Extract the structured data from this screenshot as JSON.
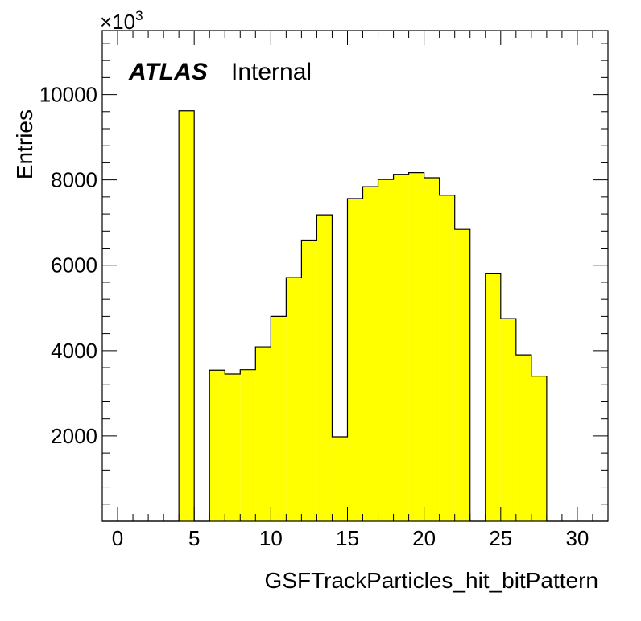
{
  "chart_data": {
    "type": "bar",
    "xlabel": "GSFTrackParticles_hit_bitPattern",
    "ylabel": "Entries",
    "y_multiplier": "×10",
    "y_multiplier_exp": "3",
    "label_atlas": "ATLAS",
    "label_status": "Internal",
    "fill_color": "#ffff00",
    "line_color": "#000000",
    "xlim": [
      -1,
      32
    ],
    "ylim": [
      0,
      11500
    ],
    "x_ticks": [
      0,
      5,
      10,
      15,
      20,
      25,
      30
    ],
    "x_tick_labels": [
      "0",
      "5",
      "10",
      "15",
      "20",
      "25",
      "30"
    ],
    "y_ticks": [
      2000,
      4000,
      6000,
      8000,
      10000
    ],
    "y_tick_labels": [
      "2000",
      "4000",
      "6000",
      "8000",
      "10000"
    ],
    "bin_width": 1,
    "bins_lower_edge": [
      -1,
      0,
      1,
      2,
      3,
      4,
      5,
      6,
      7,
      8,
      9,
      10,
      11,
      12,
      13,
      14,
      15,
      16,
      17,
      18,
      19,
      20,
      21,
      22,
      23,
      24,
      25,
      26,
      27,
      28,
      29,
      30,
      31
    ],
    "values": [
      0,
      0,
      0,
      0,
      0,
      9620,
      0,
      3540,
      3450,
      3550,
      4090,
      4800,
      5710,
      6590,
      7180,
      1980,
      7560,
      7840,
      8010,
      8130,
      8170,
      8050,
      7640,
      6840,
      0,
      5800,
      4750,
      3900,
      3400,
      0,
      0,
      0,
      0
    ]
  }
}
